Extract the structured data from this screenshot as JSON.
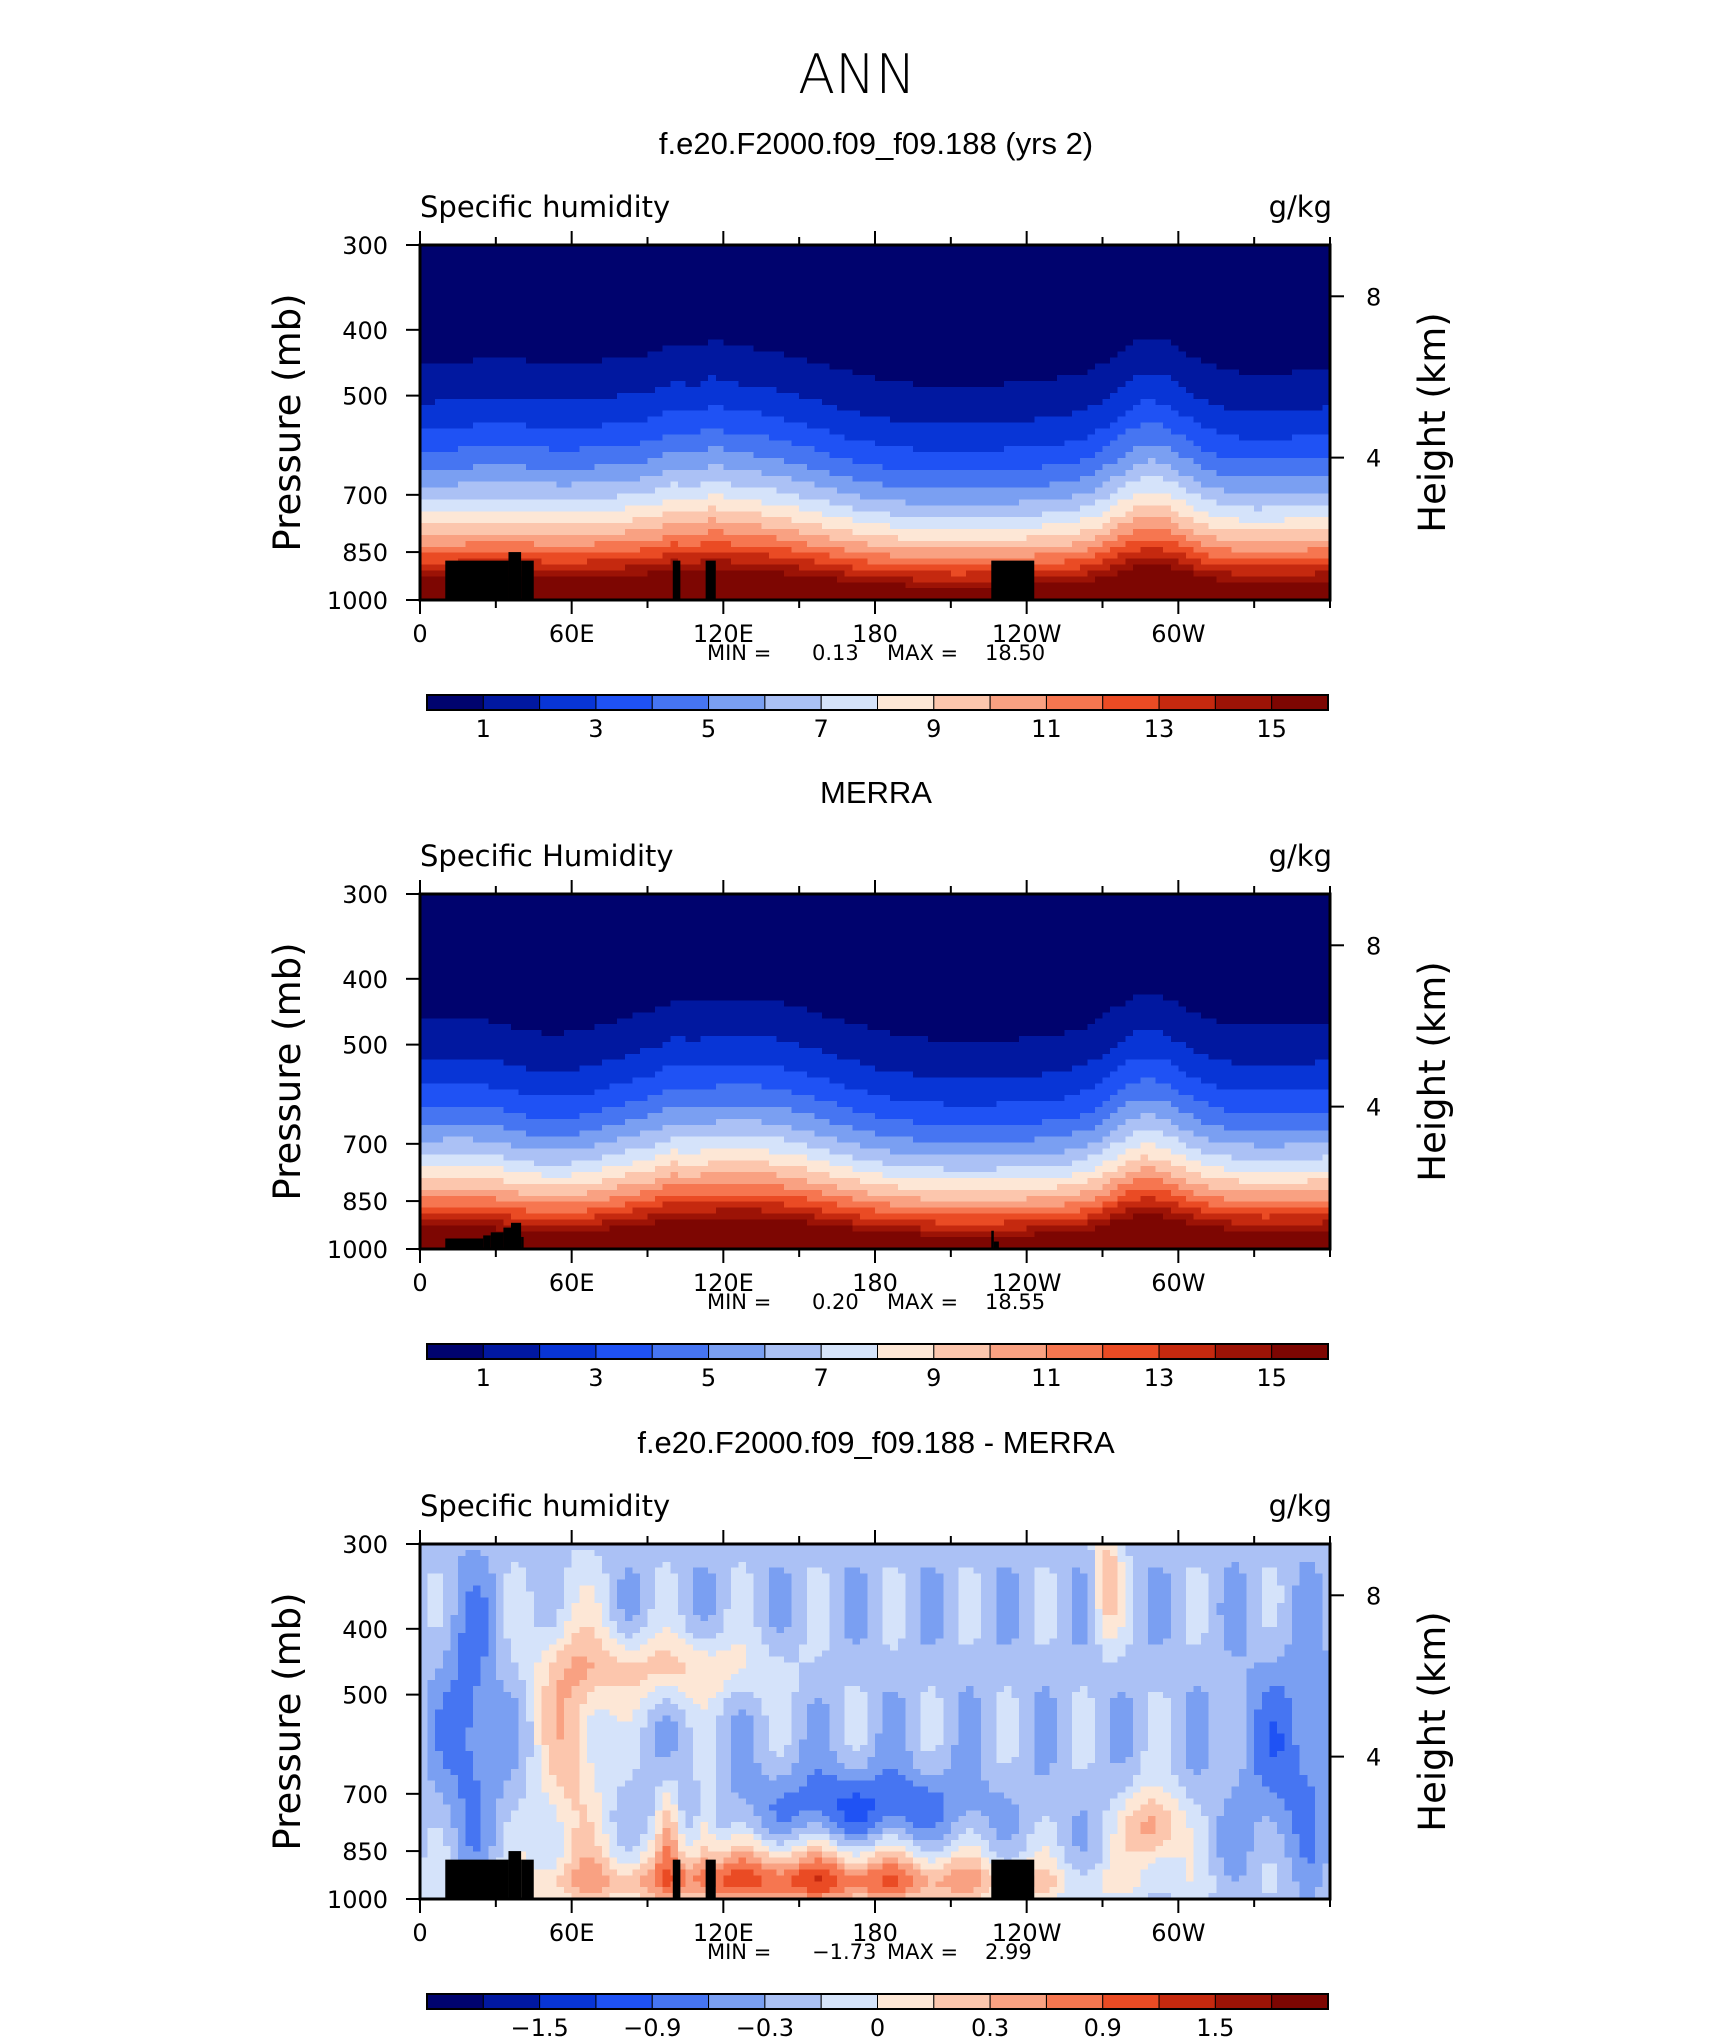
{
  "main_title": "ANN",
  "colors": {
    "abs_scale": [
      "#00036e",
      "#0118a0",
      "#0835d6",
      "#1f52f4",
      "#4675f2",
      "#7a9ff2",
      "#abc1f5",
      "#d5e3fa",
      "#fde7d6",
      "#fcc6ad",
      "#f9a182",
      "#f67650",
      "#ea4b24",
      "#c5290f",
      "#9c1306",
      "#7d0602"
    ],
    "diff_scale": [
      "#00036e",
      "#0118a0",
      "#0835d6",
      "#1f52f4",
      "#4675f2",
      "#7a9ff2",
      "#abc1f5",
      "#d5e3fa",
      "#fde7d6",
      "#fcc6ad",
      "#f9a182",
      "#f67650",
      "#ea4b24",
      "#c5290f",
      "#9c1306",
      "#7d0602"
    ],
    "terrain": "#000000"
  },
  "chart_data": [
    {
      "type": "heatmap",
      "title": "f.e20.F2000.f09_f09.188 (yrs 2)",
      "left_label": "Specific humidity",
      "right_label": "g/kg",
      "ylabel": "Pressure (mb)",
      "ylabel_right": "Height (km)",
      "x_ticks": [
        "0",
        "60E",
        "120E",
        "180",
        "120W",
        "60W"
      ],
      "y_ticks": [
        "300",
        "400",
        "500",
        "700",
        "850",
        "1000"
      ],
      "y2_ticks": [
        "8",
        "4"
      ],
      "stats": {
        "min_label": "MIN =",
        "min": "0.13",
        "max_label": "MAX =",
        "max": "18.50"
      },
      "colorbar_labels": [
        "1",
        "3",
        "5",
        "7",
        "9",
        "11",
        "13",
        "15"
      ],
      "levels": [
        1,
        2,
        3,
        4,
        5,
        6,
        7,
        8,
        9,
        10,
        11,
        12,
        13,
        14,
        15
      ],
      "scale": "abs",
      "ylim": [
        1000,
        300
      ],
      "xlim": [
        0,
        360
      ],
      "field": "model",
      "terrain": [
        [
          10,
          35,
          875
        ],
        [
          35,
          40,
          850
        ],
        [
          40,
          45,
          875
        ],
        [
          100,
          103,
          875
        ],
        [
          113,
          117,
          875
        ],
        [
          226,
          243,
          875
        ]
      ]
    },
    {
      "type": "heatmap",
      "title": "MERRA",
      "left_label": "Specific Humidity",
      "right_label": "g/kg",
      "ylabel": "Pressure (mb)",
      "ylabel_right": "Height (km)",
      "x_ticks": [
        "0",
        "60E",
        "120E",
        "180",
        "120W",
        "60W"
      ],
      "y_ticks": [
        "300",
        "400",
        "500",
        "700",
        "850",
        "1000"
      ],
      "y2_ticks": [
        "8",
        "4"
      ],
      "stats": {
        "min_label": "MIN =",
        "min": "0.20",
        "max_label": "MAX =",
        "max": "18.55"
      },
      "colorbar_labels": [
        "1",
        "3",
        "5",
        "7",
        "9",
        "11",
        "13",
        "15"
      ],
      "levels": [
        1,
        2,
        3,
        4,
        5,
        6,
        7,
        8,
        9,
        10,
        11,
        12,
        13,
        14,
        15
      ],
      "scale": "abs",
      "ylim": [
        1000,
        300
      ],
      "xlim": [
        0,
        360
      ],
      "field": "merra",
      "terrain": [
        [
          10,
          25,
          965
        ],
        [
          25,
          28,
          955
        ],
        [
          28,
          33,
          945
        ],
        [
          33,
          36,
          930
        ],
        [
          36,
          40,
          915
        ],
        [
          40,
          41,
          960
        ],
        [
          226,
          227,
          940
        ],
        [
          227,
          229,
          975
        ]
      ]
    },
    {
      "type": "heatmap",
      "title": "f.e20.F2000.f09_f09.188 - MERRA",
      "left_label": "Specific humidity",
      "right_label": "g/kg",
      "ylabel": "Pressure (mb)",
      "ylabel_right": "Height (km)",
      "x_ticks": [
        "0",
        "60E",
        "120E",
        "180",
        "120W",
        "60W"
      ],
      "y_ticks": [
        "300",
        "400",
        "500",
        "700",
        "850",
        "1000"
      ],
      "y2_ticks": [
        "8",
        "4"
      ],
      "stats": {
        "min_label": "MIN =",
        "min": "−1.73",
        "max_label": "MAX =",
        "max": "2.99"
      },
      "colorbar_labels": [
        "−1.5",
        "−0.9",
        "−0.3",
        "0",
        "0.3",
        "0.9",
        "1.5"
      ],
      "levels": [
        -2.1,
        -1.8,
        -1.5,
        -1.2,
        -0.9,
        -0.6,
        -0.3,
        0,
        0.3,
        0.6,
        0.9,
        1.2,
        1.5,
        1.8,
        2.1
      ],
      "scale": "diff",
      "ylim": [
        1000,
        300
      ],
      "xlim": [
        0,
        360
      ],
      "field": "diff",
      "terrain": [
        [
          10,
          35,
          875
        ],
        [
          35,
          40,
          850
        ],
        [
          40,
          45,
          875
        ],
        [
          100,
          103,
          875
        ],
        [
          113,
          117,
          875
        ],
        [
          226,
          243,
          875
        ]
      ]
    }
  ]
}
